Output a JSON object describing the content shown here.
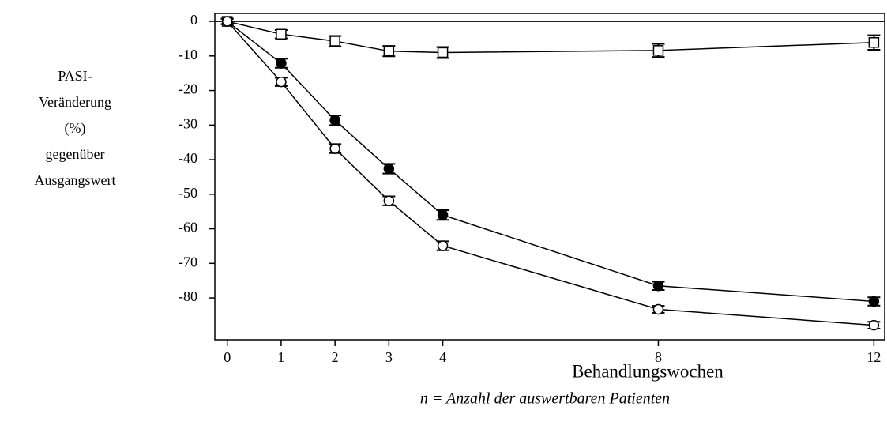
{
  "chart_data": {
    "type": "line",
    "ylabel": [
      "PASI-",
      "Veränderung",
      "(%)",
      "gegenüber",
      "Ausgangswert"
    ],
    "xlabel": "Behandlungswochen",
    "note": "n = Anzahl der auswertbaren Patienten",
    "x": [
      0,
      1,
      2,
      3,
      4,
      8,
      12
    ],
    "series": [
      {
        "marker": "open-square",
        "color": "#000000",
        "values": [
          0,
          -3.7,
          -5.7,
          -8.6,
          -9,
          -8.4,
          -6.1
        ],
        "errors": [
          0.8,
          1.2,
          1.5,
          1.5,
          1.6,
          1.9,
          2.1
        ]
      },
      {
        "marker": "filled-circle",
        "color": "#000000",
        "values": [
          0,
          -12.1,
          -28.6,
          -42.6,
          -56,
          -76.5,
          -81
        ],
        "errors": [
          0.8,
          1.3,
          1.4,
          1.4,
          1.4,
          1.2,
          1.2
        ]
      },
      {
        "marker": "open-circle",
        "color": "#000000",
        "values": [
          0,
          -17.5,
          -36.8,
          -51.9,
          -64.9,
          -83.3,
          -87.9
        ],
        "errors": [
          0.8,
          1.2,
          1.3,
          1.3,
          1.3,
          1.0,
          1.0
        ]
      }
    ],
    "reference_line": 0,
    "xlim": [
      -0.23,
      12.2
    ],
    "ylim": [
      -92.1,
      2.3
    ],
    "xticks": [
      0,
      1,
      2,
      3,
      4,
      8,
      12
    ],
    "yticks": [
      0,
      -10,
      -20,
      -30,
      -40,
      -50,
      -60,
      -70,
      -80
    ]
  }
}
